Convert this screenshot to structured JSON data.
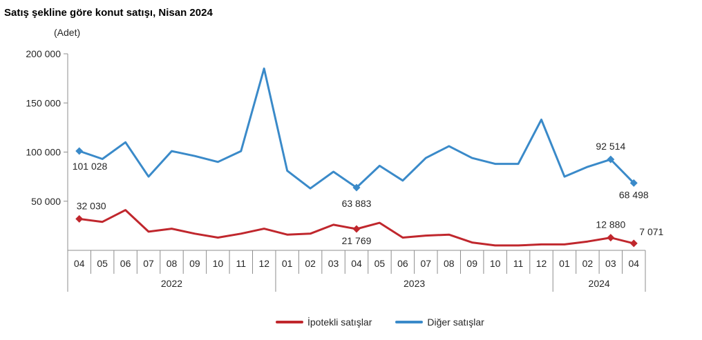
{
  "chart_data": {
    "type": "line",
    "title": "Satış şekline göre konut satışı, Nisan 2024",
    "unit_label": "(Adet)",
    "ylim": [
      0,
      200000
    ],
    "yticks": [
      {
        "value": 50000,
        "label": "50 000"
      },
      {
        "value": 100000,
        "label": "100 000"
      },
      {
        "value": 150000,
        "label": "150 000"
      },
      {
        "value": 200000,
        "label": "200 000"
      }
    ],
    "categories": [
      "04",
      "05",
      "06",
      "07",
      "08",
      "09",
      "10",
      "11",
      "12",
      "01",
      "02",
      "03",
      "04",
      "05",
      "06",
      "07",
      "08",
      "09",
      "10",
      "11",
      "12",
      "01",
      "02",
      "03",
      "04"
    ],
    "years": [
      {
        "label": "2022",
        "start": 0,
        "end": 8
      },
      {
        "label": "2023",
        "start": 9,
        "end": 20
      },
      {
        "label": "2024",
        "start": 21,
        "end": 24
      }
    ],
    "series": [
      {
        "name": "İpotekli satışlar",
        "color": "#C0272D",
        "values": [
          32030,
          29000,
          41000,
          19000,
          22000,
          17000,
          13000,
          17000,
          22000,
          16000,
          17000,
          26000,
          21769,
          28000,
          13000,
          15000,
          16000,
          8000,
          5000,
          5000,
          6000,
          6000,
          9000,
          12880,
          7071
        ],
        "marked": [
          0,
          12,
          23,
          24
        ],
        "labels": [
          {
            "index": 0,
            "text": "32 030"
          },
          {
            "index": 12,
            "text": "21 769"
          },
          {
            "index": 23,
            "text": "12 880"
          },
          {
            "index": 24,
            "text": "7 071"
          }
        ]
      },
      {
        "name": "Diğer satışlar",
        "color": "#3A8AC9",
        "values": [
          101028,
          93000,
          110000,
          75000,
          101000,
          96000,
          90000,
          101000,
          185000,
          81000,
          63000,
          80000,
          63883,
          86000,
          71000,
          94000,
          106000,
          94000,
          88000,
          88000,
          133000,
          75000,
          85000,
          92514,
          68498
        ],
        "marked": [
          0,
          12,
          23,
          24
        ],
        "labels": [
          {
            "index": 0,
            "text": "101 028"
          },
          {
            "index": 12,
            "text": "63 883"
          },
          {
            "index": 23,
            "text": "92 514"
          },
          {
            "index": 24,
            "text": "68 498"
          }
        ]
      }
    ],
    "legend_position": "bottom"
  }
}
